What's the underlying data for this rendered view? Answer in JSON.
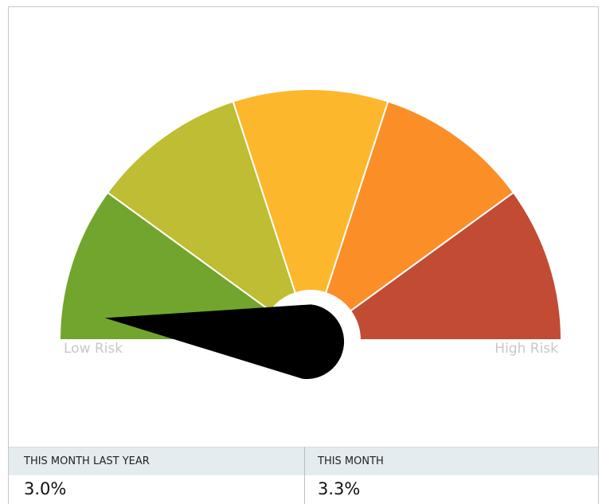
{
  "gauge": {
    "type": "gauge",
    "ylim": [
      0,
      100
    ],
    "value": 3.7,
    "colors": [
      "#72a52d",
      "#bebd33",
      "#fdb72c",
      "#fb8e27",
      "#c14b33"
    ],
    "min_label": "Low Risk",
    "max_label": "High Risk"
  },
  "table": {
    "columns": [
      {
        "header": "THIS MONTH LAST YEAR",
        "value": "3.0%"
      },
      {
        "header": "THIS MONTH",
        "value": "3.3%"
      }
    ]
  }
}
